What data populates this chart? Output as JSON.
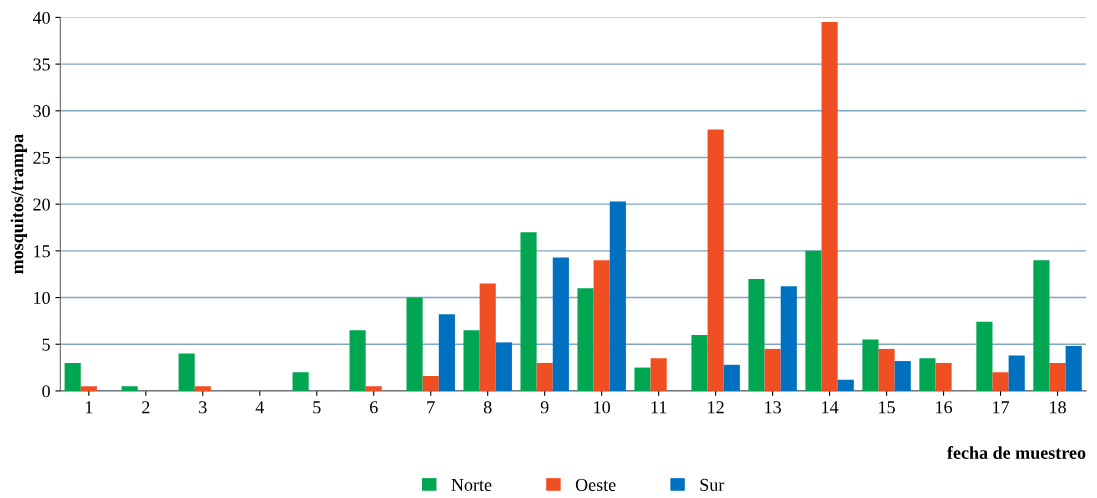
{
  "chart_data": {
    "type": "bar",
    "xlabel": "fecha de muestreo",
    "ylabel": "mosquitos/trampa",
    "categories": [
      "1",
      "2",
      "3",
      "4",
      "5",
      "6",
      "7",
      "8",
      "9",
      "10",
      "11",
      "12",
      "13",
      "14",
      "15",
      "16",
      "17",
      "18"
    ],
    "series": [
      {
        "name": "Norte",
        "color": "#00a651",
        "values": [
          3,
          0.5,
          4,
          0,
          2,
          6.5,
          10,
          6.5,
          17,
          11,
          2.5,
          6,
          12,
          15,
          5.5,
          3.5,
          7.4,
          14
        ]
      },
      {
        "name": "Oeste",
        "color": "#f04e23",
        "values": [
          0.5,
          0,
          0.5,
          0,
          0,
          0.5,
          1.6,
          11.5,
          3,
          14,
          3.5,
          28,
          4.5,
          39.5,
          4.5,
          3,
          2,
          3
        ]
      },
      {
        "name": "Sur",
        "color": "#0070c0",
        "values": [
          0,
          0,
          0,
          0,
          0,
          0,
          8.2,
          5.2,
          14.3,
          20.3,
          0,
          2.8,
          11.2,
          1.2,
          3.2,
          0,
          3.8,
          4.8
        ]
      }
    ],
    "ylim": [
      0,
      40
    ],
    "yticks": [
      0,
      5,
      10,
      15,
      20,
      25,
      30,
      35,
      40
    ],
    "grid": "y",
    "legend": "bottom"
  }
}
